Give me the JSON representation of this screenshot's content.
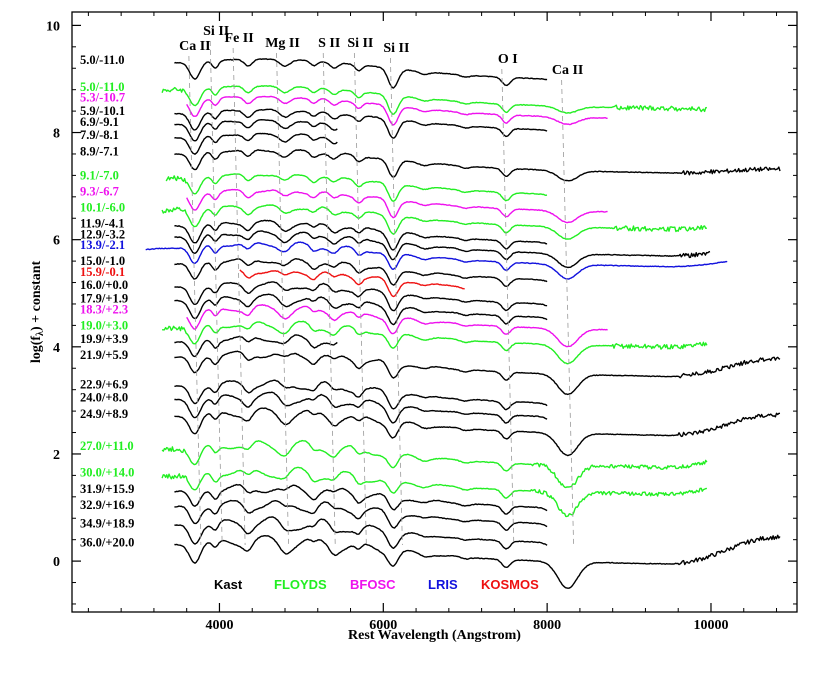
{
  "chart_data": {
    "type": "line",
    "xlabel": "Rest Wavelength (Angstrom)",
    "ylabel": "log(f",
    "ylabel_sub": "λ",
    "ylabel_rest": ") + constant",
    "xlim": [
      2200,
      11050
    ],
    "ylim": [
      -0.95,
      10.25
    ],
    "x_ticks": [
      4000,
      6000,
      8000,
      10000
    ],
    "y_ticks": [
      0,
      2,
      4,
      6,
      8,
      10
    ],
    "x_tick_labels": [
      "4000",
      "6000",
      "8000",
      "10000"
    ],
    "y_tick_labels": [
      "0",
      "2",
      "4",
      "6",
      "8",
      "10"
    ],
    "colors": {
      "Kast": "#000000",
      "FLOYDS": "#22ee22",
      "BFOSC": "#ee11ee",
      "LRIS": "#1111dd",
      "KOSMOS": "#ee1111"
    },
    "legend": {
      "placement": "bottom",
      "entries": [
        {
          "name": "Kast",
          "color": "#000000"
        },
        {
          "name": "FLOYDS",
          "color": "#22ee22"
        },
        {
          "name": "BFOSC",
          "color": "#ee11ee"
        },
        {
          "name": "LRIS",
          "color": "#1111dd"
        },
        {
          "name": "KOSMOS",
          "color": "#ee1111"
        }
      ]
    },
    "line_ids": [
      {
        "label": "Ca II",
        "x": 3700
      },
      {
        "label": "Si II",
        "x": 3960
      },
      {
        "label": "Fe II",
        "x": 4240
      },
      {
        "label": "Mg II",
        "x": 4770
      },
      {
        "label": "S II",
        "x": 5340
      },
      {
        "label": "Si II",
        "x": 5720
      },
      {
        "label": "Si II",
        "x": 6160
      },
      {
        "label": "O I",
        "x": 7520
      },
      {
        "label": "Ca II",
        "x": 8250
      }
    ],
    "series": [
      {
        "label": "5.0/-11.0",
        "instrument": "Kast",
        "offset": 9.05,
        "x_start": 3450,
        "x_end": 8000
      },
      {
        "label": "5.0/-11.0",
        "instrument": "FLOYDS",
        "offset": 8.55,
        "x_start": 3300,
        "x_end": 9950
      },
      {
        "label": "5.3/-10.7",
        "instrument": "BFOSC",
        "offset": 8.35,
        "x_start": 3600,
        "x_end": 8750
      },
      {
        "label": "5.9/-10.1",
        "instrument": "Kast",
        "offset": 8.1,
        "x_start": 3450,
        "x_end": 8000
      },
      {
        "label": "6.9/-9.1",
        "instrument": "Kast",
        "offset": 7.9,
        "x_start": 3450,
        "x_end": 5450
      },
      {
        "label": "7.9/-8.1",
        "instrument": "Kast",
        "offset": 7.65,
        "x_start": 3450,
        "x_end": 5450
      },
      {
        "label": "8.9/-7.1",
        "instrument": "Kast",
        "offset": 7.35,
        "x_start": 3450,
        "x_end": 10850
      },
      {
        "label": "9.1/-7.0",
        "instrument": "FLOYDS",
        "offset": 6.9,
        "x_start": 3350,
        "x_end": 8000
      },
      {
        "label": "9.3/-6.7",
        "instrument": "BFOSC",
        "offset": 6.6,
        "x_start": 3600,
        "x_end": 8750
      },
      {
        "label": "10.1/-6.0",
        "instrument": "FLOYDS",
        "offset": 6.3,
        "x_start": 3300,
        "x_end": 9950
      },
      {
        "label": "11.9/-4.1",
        "instrument": "Kast",
        "offset": 6.0,
        "x_start": 3450,
        "x_end": 8000
      },
      {
        "label": "12.9/-3.2",
        "instrument": "Kast",
        "offset": 5.8,
        "x_start": 3450,
        "x_end": 10000
      },
      {
        "label": "13.9/-2.1",
        "instrument": "LRIS",
        "offset": 5.6,
        "x_start": 3100,
        "x_end": 10200
      },
      {
        "label": "15.0/-1.0",
        "instrument": "Kast",
        "offset": 5.3,
        "x_start": 3450,
        "x_end": 8000
      },
      {
        "label": "15.9/-0.1",
        "instrument": "KOSMOS",
        "offset": 5.1,
        "x_start": 4250,
        "x_end": 7000
      },
      {
        "label": "16.0/+0.0",
        "instrument": "Kast",
        "offset": 4.85,
        "x_start": 3450,
        "x_end": 8000
      },
      {
        "label": "17.9/+1.9",
        "instrument": "Kast",
        "offset": 4.6,
        "x_start": 3450,
        "x_end": 8000
      },
      {
        "label": "18.3/+2.3",
        "instrument": "BFOSC",
        "offset": 4.4,
        "x_start": 3600,
        "x_end": 8750
      },
      {
        "label": "19.0/+3.0",
        "instrument": "FLOYDS",
        "offset": 4.1,
        "x_start": 3300,
        "x_end": 9950
      },
      {
        "label": "19.9/+3.9",
        "instrument": "Kast",
        "offset": 3.85,
        "x_start": 3450,
        "x_end": 5450
      },
      {
        "label": "21.9/+5.9",
        "instrument": "Kast",
        "offset": 3.55,
        "x_start": 3450,
        "x_end": 10850
      },
      {
        "label": "22.9/+6.9",
        "instrument": "Kast",
        "offset": 3.0,
        "x_start": 3450,
        "x_end": 8000
      },
      {
        "label": "24.0/+8.0",
        "instrument": "Kast",
        "offset": 2.75,
        "x_start": 3450,
        "x_end": 8000
      },
      {
        "label": "24.9/+8.9",
        "instrument": "Kast",
        "offset": 2.45,
        "x_start": 3450,
        "x_end": 10850
      },
      {
        "label": "27.0/+11.0",
        "instrument": "FLOYDS",
        "offset": 1.85,
        "x_start": 3300,
        "x_end": 9950
      },
      {
        "label": "30.0/+14.0",
        "instrument": "FLOYDS",
        "offset": 1.35,
        "x_start": 3300,
        "x_end": 9950
      },
      {
        "label": "31.9/+15.9",
        "instrument": "Kast",
        "offset": 1.05,
        "x_start": 3450,
        "x_end": 8000
      },
      {
        "label": "32.9/+16.9",
        "instrument": "Kast",
        "offset": 0.75,
        "x_start": 3450,
        "x_end": 8000
      },
      {
        "label": "34.9/+18.9",
        "instrument": "Kast",
        "offset": 0.4,
        "x_start": 3450,
        "x_end": 8000
      },
      {
        "label": "36.0/+20.0",
        "instrument": "Kast",
        "offset": 0.05,
        "x_start": 3450,
        "x_end": 10850
      }
    ]
  }
}
